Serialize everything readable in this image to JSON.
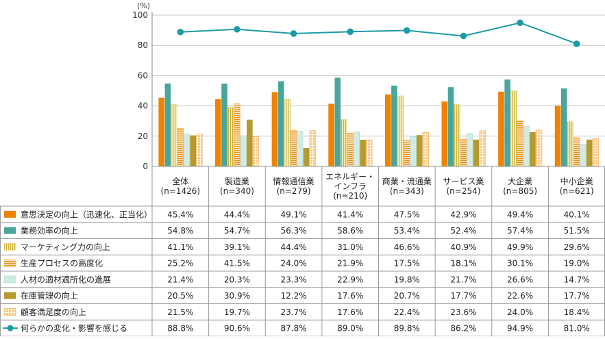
{
  "chart_data": {
    "type": "bar",
    "unit": "(%)",
    "ylim": [
      0,
      100
    ],
    "yticks": [
      0,
      20,
      40,
      60,
      80,
      100
    ],
    "categories": [
      "全体\n(n=1426)",
      "製造業\n(n=340)",
      "情報通信業\n(n=279)",
      "エネルギー・\nインフラ\n(n=210)",
      "商業・流通業\n(n=343)",
      "サービス業\n(n=254)",
      "大企業\n(n=805)",
      "中小企業\n(n=621)"
    ],
    "series": [
      {
        "name": "意思決定の向上（迅速化、正当化）",
        "color": "#ef8200",
        "pattern": "solid",
        "values": [
          45.4,
          44.4,
          49.1,
          41.4,
          47.5,
          42.9,
          49.4,
          40.1
        ]
      },
      {
        "name": "業務効率の向上",
        "color": "#4aa69a",
        "pattern": "solid",
        "values": [
          54.8,
          54.7,
          56.3,
          58.6,
          53.4,
          52.4,
          57.4,
          51.5
        ]
      },
      {
        "name": "マーケティング力の向上",
        "color": "#e4d47a",
        "pattern": "vlines",
        "values": [
          41.1,
          39.1,
          44.4,
          31.0,
          46.6,
          40.9,
          49.9,
          29.6
        ]
      },
      {
        "name": "生産プロセスの高度化",
        "color": "#f7a945",
        "pattern": "hlines",
        "values": [
          25.2,
          41.5,
          24.0,
          21.9,
          17.5,
          18.1,
          30.1,
          19.0
        ]
      },
      {
        "name": "人材の適材適所化の進展",
        "color": "#a6d5cc",
        "pattern": "dots",
        "values": [
          21.4,
          20.3,
          23.3,
          22.9,
          19.8,
          21.7,
          26.6,
          14.7
        ]
      },
      {
        "name": "在庫管理の向上",
        "color": "#b59a2e",
        "pattern": "solid",
        "values": [
          20.5,
          30.9,
          12.2,
          17.6,
          20.7,
          17.7,
          22.6,
          17.7
        ]
      },
      {
        "name": "顧客満足度の向上",
        "color": "#f7a945",
        "pattern": "grid",
        "values": [
          21.5,
          19.7,
          23.7,
          17.6,
          22.4,
          23.6,
          24.0,
          18.4
        ]
      }
    ],
    "line_series": {
      "name": "何らかの変化・影響を感じる",
      "color": "#1b9ba6",
      "values": [
        88.8,
        90.6,
        87.8,
        89.0,
        89.8,
        86.2,
        94.9,
        81.0
      ]
    },
    "table_values": [
      [
        "45.4%",
        "44.4%",
        "49.1%",
        "41.4%",
        "47.5%",
        "42.9%",
        "49.4%",
        "40.1%"
      ],
      [
        "54.8%",
        "54.7%",
        "56.3%",
        "58.6%",
        "53.4%",
        "52.4%",
        "57.4%",
        "51.5%"
      ],
      [
        "41.1%",
        "39.1%",
        "44.4%",
        "31.0%",
        "46.6%",
        "40.9%",
        "49.9%",
        "29.6%"
      ],
      [
        "25.2%",
        "41.5%",
        "24.0%",
        "21.9%",
        "17.5%",
        "18.1%",
        "30.1%",
        "19.0%"
      ],
      [
        "21.4%",
        "20.3%",
        "23.3%",
        "22.9%",
        "19.8%",
        "21.7%",
        "26.6%",
        "14.7%"
      ],
      [
        "20.5%",
        "30.9%",
        "12.2%",
        "17.6%",
        "20.7%",
        "17.7%",
        "22.6%",
        "17.7%"
      ],
      [
        "21.5%",
        "19.7%",
        "23.7%",
        "17.6%",
        "22.4%",
        "23.6%",
        "24.0%",
        "18.4%"
      ],
      [
        "88.8%",
        "90.6%",
        "87.8%",
        "89.0%",
        "89.8%",
        "86.2%",
        "94.9%",
        "81.0%"
      ]
    ]
  }
}
